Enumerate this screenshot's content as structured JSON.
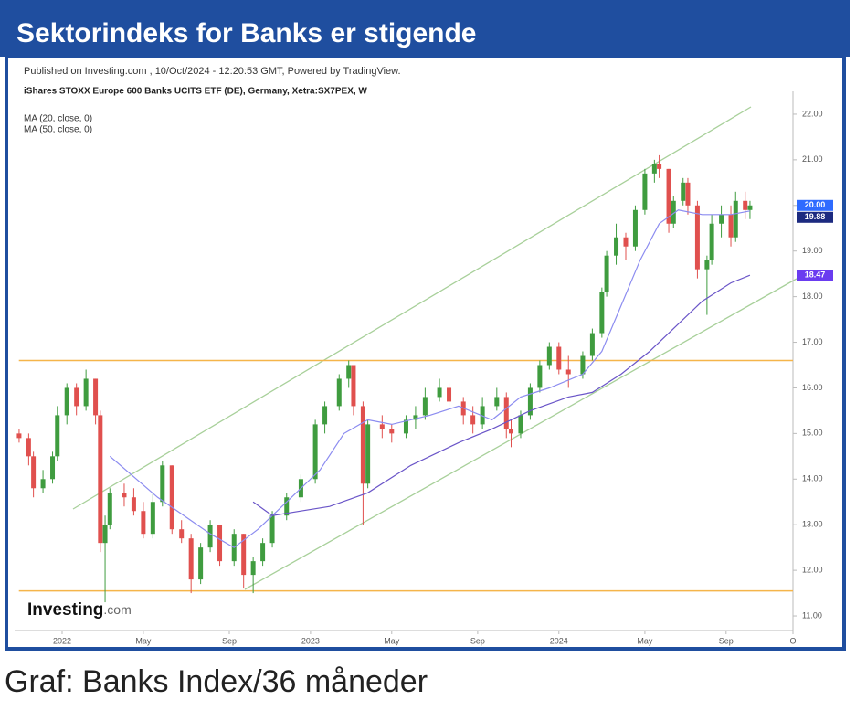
{
  "header": {
    "title": "Sektorindeks for Banks er stigende"
  },
  "caption": "Graf: Banks Index/36 måneder",
  "chart_data": {
    "type": "candlestick",
    "source_note": "Published on Investing.com , 10/Oct/2024 - 12:20:53 GMT, Powered by TradingView.",
    "symbol": "iShares STOXX Europe 600 Banks UCITS ETF (DE), Germany, Xetra:SX7PEX, W",
    "logo": {
      "text": "Investing",
      "suffix": ".com"
    },
    "up_color": "#3f9c3f",
    "down_color": "#e0504e",
    "x": [
      -9,
      -7,
      -6,
      -4,
      -2,
      -1,
      1,
      3,
      5,
      7,
      8,
      9,
      10,
      13,
      15,
      17,
      19,
      21,
      23,
      25,
      27,
      29,
      31,
      33,
      36,
      38,
      40,
      42,
      44,
      47,
      50,
      53,
      55,
      58,
      60,
      61,
      63,
      64,
      67,
      69,
      72,
      74,
      76,
      79,
      81,
      84,
      86,
      88,
      91,
      93,
      94,
      96,
      98,
      100,
      102,
      104,
      106,
      109,
      111,
      113,
      114,
      116,
      118,
      120,
      122,
      124,
      125,
      127,
      128,
      130,
      131,
      133,
      135,
      136,
      138,
      140,
      141,
      143,
      144
    ],
    "open": [
      15.0,
      14.9,
      14.5,
      13.8,
      14.0,
      14.5,
      15.4,
      16.0,
      15.6,
      16.2,
      15.4,
      12.6,
      13.0,
      13.7,
      13.6,
      13.3,
      12.8,
      13.5,
      14.3,
      12.9,
      12.7,
      11.8,
      12.5,
      13.0,
      12.2,
      12.8,
      11.9,
      12.2,
      12.6,
      13.2,
      13.6,
      14.0,
      15.2,
      15.6,
      16.2,
      16.5,
      15.6,
      13.9,
      15.2,
      15.1,
      15.0,
      15.3,
      15.4,
      15.8,
      16.0,
      15.7,
      15.4,
      15.2,
      15.6,
      15.8,
      15.1,
      15.0,
      15.4,
      16.0,
      16.5,
      16.9,
      16.4,
      16.3,
      16.7,
      17.2,
      18.1,
      18.9,
      19.3,
      19.1,
      19.9,
      20.7,
      20.9,
      20.8,
      19.6,
      20.1,
      20.5,
      20.0,
      18.6,
      18.8,
      19.6,
      19.8,
      19.3,
      20.1,
      19.9
    ],
    "high": [
      15.1,
      15.0,
      14.6,
      14.2,
      14.6,
      15.6,
      16.1,
      16.1,
      16.4,
      16.2,
      15.5,
      13.2,
      13.8,
      13.9,
      13.8,
      13.5,
      13.7,
      14.4,
      14.3,
      13.1,
      12.8,
      12.6,
      13.1,
      13.0,
      12.9,
      12.8,
      12.3,
      12.7,
      13.3,
      13.7,
      14.1,
      15.3,
      15.7,
      16.3,
      16.6,
      16.5,
      15.7,
      15.3,
      15.4,
      15.2,
      15.4,
      15.6,
      16.0,
      16.2,
      16.1,
      15.8,
      15.6,
      15.8,
      16.0,
      15.9,
      15.3,
      15.5,
      16.1,
      16.6,
      17.0,
      17.0,
      16.7,
      16.8,
      17.3,
      18.2,
      19.0,
      19.6,
      19.4,
      20.0,
      20.8,
      21.0,
      21.1,
      20.8,
      20.2,
      20.6,
      20.6,
      20.1,
      18.9,
      19.8,
      20.0,
      20.0,
      20.3,
      20.3,
      20.1
    ],
    "low": [
      14.8,
      14.3,
      13.6,
      13.7,
      13.9,
      14.4,
      15.2,
      15.4,
      15.5,
      15.2,
      12.4,
      11.3,
      12.9,
      13.4,
      13.2,
      12.7,
      12.7,
      13.4,
      12.8,
      12.6,
      11.5,
      11.7,
      12.4,
      12.1,
      12.1,
      11.6,
      11.5,
      12.1,
      12.5,
      13.1,
      13.5,
      13.9,
      15.0,
      15.5,
      16.0,
      15.4,
      13.0,
      13.8,
      14.9,
      14.8,
      14.9,
      15.1,
      15.3,
      15.7,
      15.6,
      15.2,
      15.0,
      15.1,
      15.5,
      14.9,
      14.7,
      14.9,
      15.3,
      15.9,
      16.4,
      16.3,
      16.0,
      16.2,
      16.6,
      17.1,
      18.0,
      18.7,
      18.8,
      19.0,
      19.8,
      20.5,
      20.6,
      19.4,
      19.5,
      20.0,
      19.8,
      18.4,
      17.6,
      18.7,
      19.3,
      19.1,
      19.2,
      19.7,
      19.7
    ],
    "close": [
      14.9,
      14.5,
      13.8,
      14.0,
      14.5,
      15.4,
      16.0,
      15.6,
      16.2,
      15.4,
      12.6,
      13.0,
      13.7,
      13.6,
      13.3,
      12.8,
      13.5,
      14.3,
      12.9,
      12.7,
      11.8,
      12.5,
      13.0,
      12.2,
      12.8,
      11.9,
      12.2,
      12.6,
      13.2,
      13.6,
      14.0,
      15.2,
      15.6,
      16.2,
      16.5,
      15.6,
      13.9,
      15.2,
      15.1,
      15.0,
      15.3,
      15.4,
      15.8,
      16.0,
      15.7,
      15.4,
      15.2,
      15.6,
      15.8,
      15.1,
      15.0,
      15.4,
      16.0,
      16.5,
      16.9,
      16.4,
      16.3,
      16.7,
      17.2,
      18.1,
      18.9,
      19.3,
      19.1,
      19.9,
      20.7,
      20.9,
      20.8,
      19.6,
      20.1,
      20.5,
      20.0,
      18.6,
      18.8,
      19.6,
      19.8,
      19.3,
      20.1,
      19.9,
      20.0
    ],
    "series": [
      {
        "name": "MA (20, close, 0)",
        "color": "#8c8cf0",
        "x": [
          10,
          20,
          31,
          36,
          41,
          48,
          54,
          59,
          64,
          69,
          77,
          83,
          90,
          96,
          102,
          109,
          113,
          117,
          121,
          125,
          129,
          134,
          140,
          144
        ],
        "values": [
          14.5,
          13.6,
          12.8,
          12.5,
          12.9,
          13.6,
          14.2,
          15.0,
          15.3,
          15.2,
          15.4,
          15.6,
          15.3,
          15.8,
          16.0,
          16.3,
          16.8,
          17.8,
          18.8,
          19.6,
          19.9,
          19.8,
          19.8,
          19.88
        ]
      },
      {
        "name": "MA (50, close, 0)",
        "color": "#6a55c8",
        "x": [
          40,
          44,
          50,
          56,
          64,
          73,
          83,
          90,
          98,
          106,
          111,
          117,
          123,
          129,
          134,
          140,
          144
        ],
        "values": [
          13.5,
          13.2,
          13.3,
          13.4,
          13.7,
          14.3,
          14.8,
          15.1,
          15.5,
          15.8,
          15.9,
          16.3,
          16.8,
          17.4,
          17.9,
          18.3,
          18.47
        ]
      }
    ],
    "price_labels": [
      {
        "value": 20.0,
        "label": "20.00",
        "color": "#2f6bff"
      },
      {
        "value": 19.88,
        "label": "19.88",
        "color": "#1c2a80"
      },
      {
        "value": 18.47,
        "label": "18.47",
        "color": "#6a3cf0"
      }
    ],
    "hlines": [
      16.6,
      11.55
    ],
    "hline_color": "#f5b54a",
    "xlim": [
      -10,
      153
    ],
    "ylim": [
      10.6,
      22.5
    ],
    "xticks": [
      {
        "value": 0,
        "label": "2022"
      },
      {
        "value": 17,
        "label": "May"
      },
      {
        "value": 35,
        "label": "Sep"
      },
      {
        "value": 52,
        "label": "2023"
      },
      {
        "value": 69,
        "label": "May"
      },
      {
        "value": 87,
        "label": "Sep"
      },
      {
        "value": 104,
        "label": "2024"
      },
      {
        "value": 122,
        "label": "May"
      },
      {
        "value": 139,
        "label": "Sep"
      },
      {
        "value": 153,
        "label": "O"
      }
    ],
    "yticks": [
      {
        "value": 11,
        "label": "11.00"
      },
      {
        "value": 12,
        "label": "12.00"
      },
      {
        "value": 13,
        "label": "13.00"
      },
      {
        "value": 14,
        "label": "14.00"
      },
      {
        "value": 15,
        "label": "15.00"
      },
      {
        "value": 16,
        "label": "16.00"
      },
      {
        "value": 17,
        "label": "17.00"
      },
      {
        "value": 18,
        "label": "18.00"
      },
      {
        "value": 19,
        "label": "19.00"
      },
      {
        "value": 20,
        "label": "20.00"
      },
      {
        "value": 21,
        "label": "21.00"
      },
      {
        "value": 22,
        "label": "22.00"
      }
    ]
  }
}
